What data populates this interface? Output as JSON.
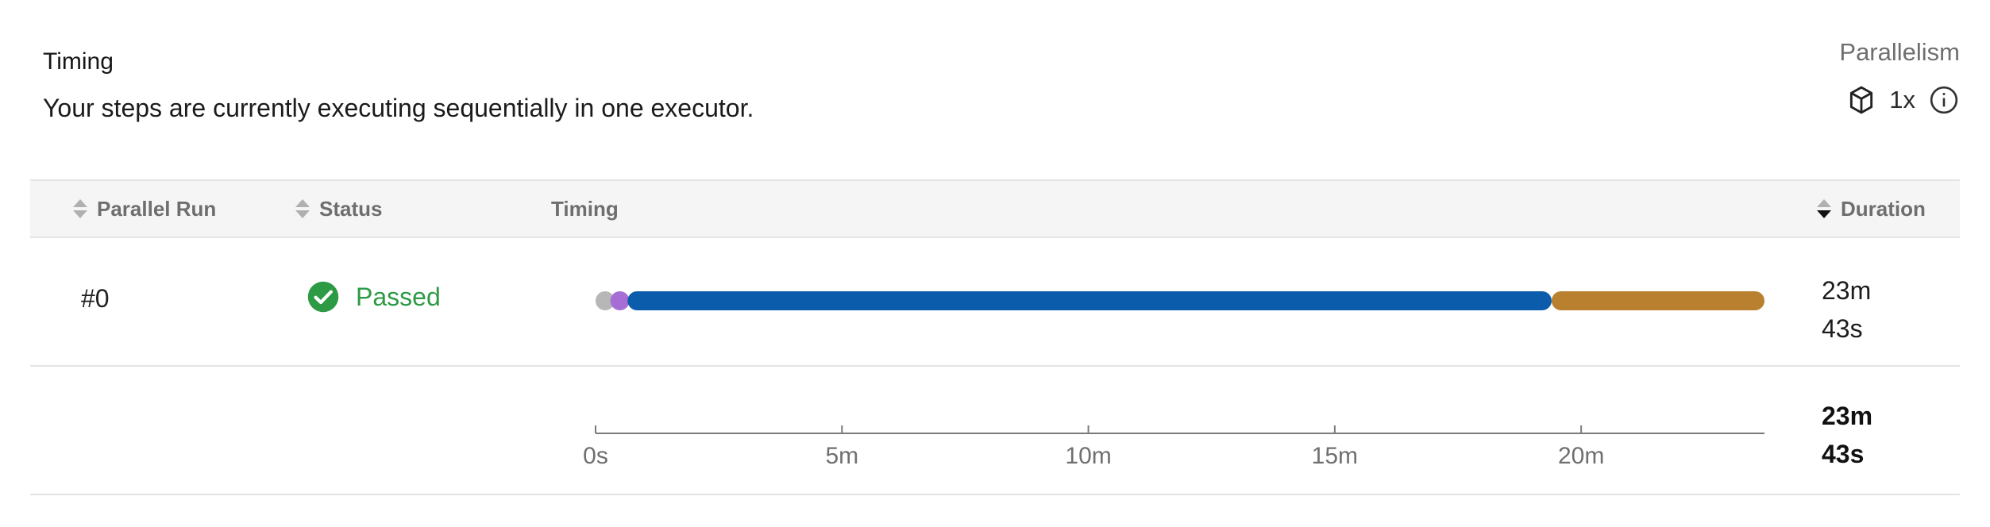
{
  "header": {
    "title": "Timing",
    "subtitle": "Your steps are currently executing sequentially in one executor."
  },
  "parallelism": {
    "label": "Parallelism",
    "value": "1x",
    "icon": "cube-icon",
    "info_icon": "info-icon"
  },
  "table": {
    "columns": [
      "Parallel Run",
      "Status",
      "Timing",
      "Duration"
    ],
    "rows": [
      {
        "run": "#0",
        "status": "Passed",
        "status_color": "#2d9a45",
        "duration_min": "23m",
        "duration_sec": "43s",
        "segments": [
          {
            "start": 0.0,
            "end": 0.3,
            "color": "#b7b7b7"
          },
          {
            "start": 0.3,
            "end": 0.65,
            "color": "#a66dd4"
          },
          {
            "start": 0.65,
            "end": 19.4,
            "color": "#0b5cab"
          },
          {
            "start": 19.4,
            "end": 23.72,
            "color": "#b9802f"
          }
        ]
      }
    ],
    "total_duration_min": "23m",
    "total_duration_sec": "43s"
  },
  "axis": {
    "max_minutes": 23.72,
    "ticks": [
      {
        "value": 0,
        "label": "0s"
      },
      {
        "value": 5,
        "label": "5m"
      },
      {
        "value": 10,
        "label": "10m"
      },
      {
        "value": 15,
        "label": "15m"
      },
      {
        "value": 20,
        "label": "20m"
      }
    ]
  }
}
